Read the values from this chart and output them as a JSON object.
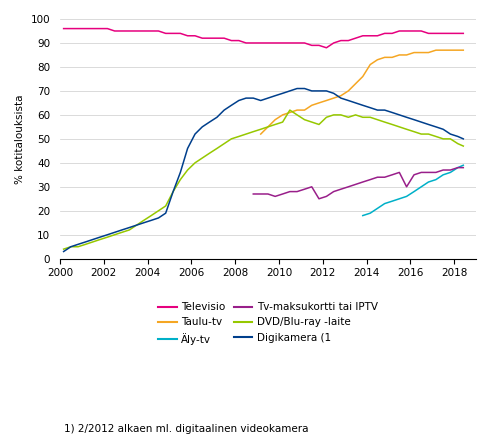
{
  "ylabel": "% kotitalouksista",
  "footnote": "1) 2/2012 alkaen ml. digitaalinen videokamera",
  "xlim": [
    2000,
    2019
  ],
  "ylim": [
    0,
    100
  ],
  "yticks": [
    0,
    10,
    20,
    30,
    40,
    50,
    60,
    70,
    80,
    90,
    100
  ],
  "xticks": [
    2000,
    2002,
    2004,
    2006,
    2008,
    2010,
    2012,
    2014,
    2016,
    2018
  ],
  "series": {
    "Televisio": {
      "color": "#e6007e",
      "x": [
        2000.17,
        2000.5,
        2000.83,
        2001.17,
        2001.5,
        2001.83,
        2002.17,
        2002.5,
        2002.83,
        2003.17,
        2003.5,
        2003.83,
        2004.17,
        2004.5,
        2004.83,
        2005.17,
        2005.5,
        2005.83,
        2006.17,
        2006.5,
        2006.83,
        2007.17,
        2007.5,
        2007.83,
        2008.17,
        2008.5,
        2008.83,
        2009.17,
        2009.5,
        2009.83,
        2010.17,
        2010.5,
        2010.83,
        2011.17,
        2011.5,
        2011.83,
        2012.17,
        2012.5,
        2012.83,
        2013.17,
        2013.5,
        2013.83,
        2014.17,
        2014.5,
        2014.83,
        2015.17,
        2015.5,
        2015.83,
        2016.17,
        2016.5,
        2016.83,
        2017.17,
        2017.5,
        2017.83,
        2018.17,
        2018.42
      ],
      "y": [
        96,
        96,
        96,
        96,
        96,
        96,
        96,
        95,
        95,
        95,
        95,
        95,
        95,
        95,
        94,
        94,
        94,
        93,
        93,
        92,
        92,
        92,
        92,
        91,
        91,
        90,
        90,
        90,
        90,
        90,
        90,
        90,
        90,
        90,
        89,
        89,
        88,
        90,
        91,
        91,
        92,
        93,
        93,
        93,
        94,
        94,
        95,
        95,
        95,
        95,
        94,
        94,
        94,
        94,
        94,
        94
      ]
    },
    "Taulu-tv": {
      "color": "#f5a623",
      "x": [
        2009.17,
        2009.5,
        2009.83,
        2010.17,
        2010.5,
        2010.83,
        2011.17,
        2011.5,
        2011.83,
        2012.17,
        2012.5,
        2012.83,
        2013.17,
        2013.5,
        2013.83,
        2014.17,
        2014.5,
        2014.83,
        2015.17,
        2015.5,
        2015.83,
        2016.17,
        2016.5,
        2016.83,
        2017.17,
        2017.5,
        2017.83,
        2018.17,
        2018.42
      ],
      "y": [
        52,
        55,
        58,
        60,
        61,
        62,
        62,
        64,
        65,
        66,
        67,
        68,
        70,
        73,
        76,
        81,
        83,
        84,
        84,
        85,
        85,
        86,
        86,
        86,
        87,
        87,
        87,
        87,
        87
      ]
    },
    "Aly-tv": {
      "color": "#00b0c8",
      "x": [
        2013.83,
        2014.17,
        2014.5,
        2014.83,
        2015.17,
        2015.5,
        2015.83,
        2016.17,
        2016.5,
        2016.83,
        2017.17,
        2017.5,
        2017.83,
        2018.17,
        2018.42
      ],
      "y": [
        18,
        19,
        21,
        23,
        24,
        25,
        26,
        28,
        30,
        32,
        33,
        35,
        36,
        38,
        39
      ]
    },
    "Tv-maksukortti tai IPTV": {
      "color": "#991f8a",
      "x": [
        2008.83,
        2009.17,
        2009.5,
        2009.83,
        2010.17,
        2010.5,
        2010.83,
        2011.17,
        2011.5,
        2011.83,
        2012.17,
        2012.5,
        2012.83,
        2013.17,
        2013.5,
        2013.83,
        2014.17,
        2014.5,
        2014.83,
        2015.17,
        2015.5,
        2015.83,
        2016.17,
        2016.5,
        2016.83,
        2017.17,
        2017.5,
        2017.83,
        2018.17,
        2018.42
      ],
      "y": [
        27,
        27,
        27,
        26,
        27,
        28,
        28,
        29,
        30,
        25,
        26,
        28,
        29,
        30,
        31,
        32,
        33,
        34,
        34,
        35,
        36,
        30,
        35,
        36,
        36,
        36,
        37,
        37,
        38,
        38
      ]
    },
    "DVD/Blu-ray -laite": {
      "color": "#96c800",
      "x": [
        2000.17,
        2000.5,
        2000.83,
        2001.17,
        2001.5,
        2001.83,
        2002.17,
        2002.5,
        2002.83,
        2003.17,
        2003.5,
        2003.83,
        2004.17,
        2004.5,
        2004.83,
        2005.17,
        2005.5,
        2005.83,
        2006.17,
        2006.5,
        2006.83,
        2007.17,
        2007.5,
        2007.83,
        2008.17,
        2008.5,
        2008.83,
        2009.17,
        2009.5,
        2009.83,
        2010.17,
        2010.5,
        2010.83,
        2011.17,
        2011.5,
        2011.83,
        2012.17,
        2012.5,
        2012.83,
        2013.17,
        2013.5,
        2013.83,
        2014.17,
        2014.5,
        2014.83,
        2015.17,
        2015.5,
        2015.83,
        2016.17,
        2016.5,
        2016.83,
        2017.17,
        2017.5,
        2017.83,
        2018.17,
        2018.42
      ],
      "y": [
        4,
        5,
        5,
        6,
        7,
        8,
        9,
        10,
        11,
        12,
        14,
        16,
        18,
        20,
        22,
        28,
        33,
        37,
        40,
        42,
        44,
        46,
        48,
        50,
        51,
        52,
        53,
        54,
        55,
        56,
        57,
        62,
        60,
        58,
        57,
        56,
        59,
        60,
        60,
        59,
        60,
        59,
        59,
        58,
        57,
        56,
        55,
        54,
        53,
        52,
        52,
        51,
        50,
        50,
        48,
        47
      ]
    },
    "Digikamera (1": {
      "color": "#003f8c",
      "x": [
        2000.17,
        2000.5,
        2000.83,
        2001.17,
        2001.5,
        2001.83,
        2002.17,
        2002.5,
        2002.83,
        2003.17,
        2003.5,
        2003.83,
        2004.17,
        2004.5,
        2004.83,
        2005.17,
        2005.5,
        2005.83,
        2006.17,
        2006.5,
        2006.83,
        2007.17,
        2007.5,
        2007.83,
        2008.17,
        2008.5,
        2008.83,
        2009.17,
        2009.5,
        2009.83,
        2010.17,
        2010.5,
        2010.83,
        2011.17,
        2011.5,
        2011.83,
        2012.17,
        2012.5,
        2012.83,
        2013.17,
        2013.5,
        2013.83,
        2014.17,
        2014.5,
        2014.83,
        2015.17,
        2015.5,
        2015.83,
        2016.17,
        2016.5,
        2016.83,
        2017.17,
        2017.5,
        2017.83,
        2018.17,
        2018.42
      ],
      "y": [
        3,
        5,
        6,
        7,
        8,
        9,
        10,
        11,
        12,
        13,
        14,
        15,
        16,
        17,
        19,
        28,
        36,
        46,
        52,
        55,
        57,
        59,
        62,
        64,
        66,
        67,
        67,
        66,
        67,
        68,
        69,
        70,
        71,
        71,
        70,
        70,
        70,
        69,
        67,
        66,
        65,
        64,
        63,
        62,
        62,
        61,
        60,
        59,
        58,
        57,
        56,
        55,
        54,
        52,
        51,
        50
      ]
    }
  },
  "legend_order": [
    {
      "label": "Televisio",
      "color": "#e6007e",
      "col": 0
    },
    {
      "label": "Taulu-tv",
      "color": "#f5a623",
      "col": 1
    },
    {
      "label": "Äly-tv",
      "color": "#00b0c8",
      "col": 0
    },
    {
      "label": "Tv-maksukortti tai IPTV",
      "color": "#991f8a",
      "col": 1
    },
    {
      "label": "DVD/Blu-ray -laite",
      "color": "#96c800",
      "col": 0
    },
    {
      "label": "Digikamera (1",
      "color": "#003f8c",
      "col": 1
    }
  ]
}
